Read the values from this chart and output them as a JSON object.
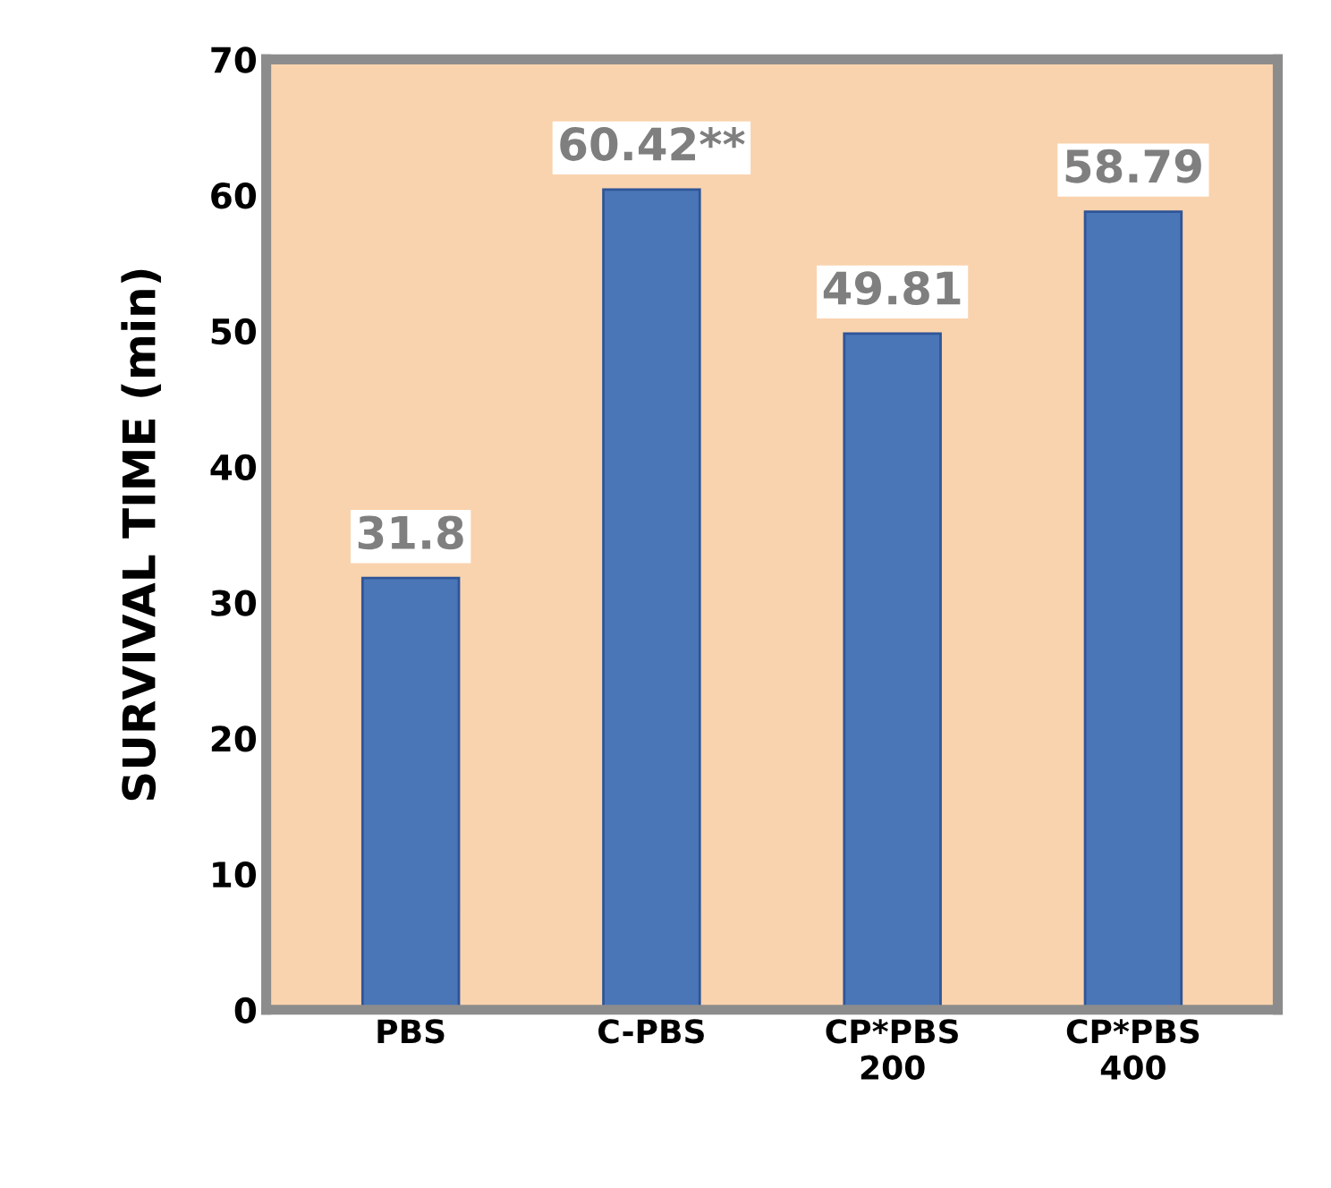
{
  "chart_data": {
    "type": "bar",
    "ylabel": "SURVIVAL TIME (min)",
    "categories": [
      "PBS",
      "C-PBS",
      "CP*PBS\n200",
      "CP*PBS\n400"
    ],
    "values": [
      31.8,
      60.42,
      49.81,
      58.79
    ],
    "value_labels": [
      "31.8",
      "60.42**",
      "49.81",
      "58.79"
    ],
    "color": "#4a76b8",
    "ylim": [
      0,
      70
    ],
    "yticks": [
      0,
      10,
      20,
      30,
      40,
      50,
      60,
      70
    ],
    "grid": false
  }
}
